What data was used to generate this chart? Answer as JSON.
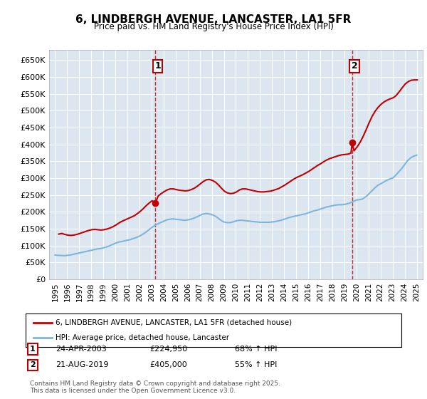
{
  "title": "6, LINDBERGH AVENUE, LANCASTER, LA1 5FR",
  "subtitle": "Price paid vs. HM Land Registry's House Price Index (HPI)",
  "ylabel": "",
  "background_color": "#ffffff",
  "plot_background": "#dce6f1",
  "grid_color": "#ffffff",
  "hpi_color": "#7eb6d9",
  "property_color": "#c00000",
  "sale1_date_x": 2003.31,
  "sale1_price": 224950,
  "sale1_label": "1",
  "sale2_date_x": 2019.64,
  "sale2_price": 405000,
  "sale2_label": "2",
  "ylim": [
    0,
    680000
  ],
  "xlim": [
    1994.5,
    2025.5
  ],
  "yticks": [
    0,
    50000,
    100000,
    150000,
    200000,
    250000,
    300000,
    350000,
    400000,
    450000,
    500000,
    550000,
    600000,
    650000
  ],
  "ytick_labels": [
    "£0",
    "£50K",
    "£100K",
    "£150K",
    "£200K",
    "£250K",
    "£300K",
    "£350K",
    "£400K",
    "£450K",
    "£500K",
    "£550K",
    "£600K",
    "£650K"
  ],
  "xticks": [
    1995,
    1996,
    1997,
    1998,
    1999,
    2000,
    2001,
    2002,
    2003,
    2004,
    2005,
    2006,
    2007,
    2008,
    2009,
    2010,
    2011,
    2012,
    2013,
    2014,
    2015,
    2016,
    2017,
    2018,
    2019,
    2020,
    2021,
    2022,
    2023,
    2024,
    2025
  ],
  "legend_property": "6, LINDBERGH AVENUE, LANCASTER, LA1 5FR (detached house)",
  "legend_hpi": "HPI: Average price, detached house, Lancaster",
  "annotation1": "1    24-APR-2003    £224,950    68% ↑ HPI",
  "annotation2": "2    21-AUG-2019    £405,000    55% ↑ HPI",
  "footer": "Contains HM Land Registry data © Crown copyright and database right 2025.\nThis data is licensed under the Open Government Licence v3.0.",
  "hpi_data_x": [
    1995.0,
    1995.25,
    1995.5,
    1995.75,
    1996.0,
    1996.25,
    1996.5,
    1996.75,
    1997.0,
    1997.25,
    1997.5,
    1997.75,
    1998.0,
    1998.25,
    1998.5,
    1998.75,
    1999.0,
    1999.25,
    1999.5,
    1999.75,
    2000.0,
    2000.25,
    2000.5,
    2000.75,
    2001.0,
    2001.25,
    2001.5,
    2001.75,
    2002.0,
    2002.25,
    2002.5,
    2002.75,
    2003.0,
    2003.25,
    2003.5,
    2003.75,
    2004.0,
    2004.25,
    2004.5,
    2004.75,
    2005.0,
    2005.25,
    2005.5,
    2005.75,
    2006.0,
    2006.25,
    2006.5,
    2006.75,
    2007.0,
    2007.25,
    2007.5,
    2007.75,
    2008.0,
    2008.25,
    2008.5,
    2008.75,
    2009.0,
    2009.25,
    2009.5,
    2009.75,
    2010.0,
    2010.25,
    2010.5,
    2010.75,
    2011.0,
    2011.25,
    2011.5,
    2011.75,
    2012.0,
    2012.25,
    2012.5,
    2012.75,
    2013.0,
    2013.25,
    2013.5,
    2013.75,
    2014.0,
    2014.25,
    2014.5,
    2014.75,
    2015.0,
    2015.25,
    2015.5,
    2015.75,
    2016.0,
    2016.25,
    2016.5,
    2016.75,
    2017.0,
    2017.25,
    2017.5,
    2017.75,
    2018.0,
    2018.25,
    2018.5,
    2018.75,
    2019.0,
    2019.25,
    2019.5,
    2019.75,
    2020.0,
    2020.25,
    2020.5,
    2020.75,
    2021.0,
    2021.25,
    2021.5,
    2021.75,
    2022.0,
    2022.25,
    2022.5,
    2022.75,
    2023.0,
    2023.25,
    2023.5,
    2023.75,
    2024.0,
    2024.25,
    2024.5,
    2024.75,
    2025.0
  ],
  "hpi_data_y": [
    72000,
    71000,
    70500,
    70000,
    71000,
    72000,
    74000,
    76000,
    78000,
    80000,
    82000,
    84000,
    86000,
    88000,
    90000,
    91000,
    93000,
    96000,
    99000,
    103000,
    107000,
    110000,
    112000,
    114000,
    116000,
    118000,
    121000,
    124000,
    128000,
    133000,
    139000,
    146000,
    153000,
    159000,
    164000,
    168000,
    172000,
    176000,
    178000,
    179000,
    178000,
    177000,
    176000,
    175000,
    176000,
    178000,
    181000,
    185000,
    189000,
    193000,
    195000,
    194000,
    192000,
    188000,
    182000,
    175000,
    170000,
    168000,
    168000,
    170000,
    173000,
    175000,
    175000,
    174000,
    173000,
    172000,
    171000,
    170000,
    169000,
    169000,
    169000,
    169000,
    170000,
    171000,
    173000,
    175000,
    178000,
    181000,
    184000,
    186000,
    188000,
    190000,
    192000,
    194000,
    197000,
    200000,
    203000,
    205000,
    208000,
    211000,
    214000,
    216000,
    218000,
    220000,
    221000,
    221000,
    222000,
    224000,
    227000,
    231000,
    235000,
    236000,
    238000,
    244000,
    252000,
    261000,
    270000,
    278000,
    283000,
    288000,
    293000,
    297000,
    300000,
    308000,
    318000,
    328000,
    340000,
    352000,
    360000,
    365000,
    368000
  ],
  "property_data_x": [
    1995.3,
    1995.55,
    1995.8,
    1996.05,
    1996.3,
    1996.55,
    1996.8,
    1997.05,
    1997.3,
    1997.55,
    1997.8,
    1998.05,
    1998.3,
    1998.55,
    1998.8,
    1999.05,
    1999.3,
    1999.55,
    1999.8,
    2000.05,
    2000.3,
    2000.55,
    2000.8,
    2001.05,
    2001.3,
    2001.55,
    2001.8,
    2002.05,
    2002.3,
    2002.55,
    2002.8,
    2003.05,
    2003.31,
    2003.55,
    2003.8,
    2004.05,
    2004.3,
    2004.55,
    2004.8,
    2005.05,
    2005.3,
    2005.55,
    2005.8,
    2006.05,
    2006.3,
    2006.55,
    2006.8,
    2007.05,
    2007.3,
    2007.55,
    2007.8,
    2008.05,
    2008.3,
    2008.55,
    2008.8,
    2009.05,
    2009.3,
    2009.55,
    2009.8,
    2010.05,
    2010.3,
    2010.55,
    2010.8,
    2011.05,
    2011.3,
    2011.55,
    2011.8,
    2012.05,
    2012.3,
    2012.55,
    2012.8,
    2013.05,
    2013.3,
    2013.55,
    2013.8,
    2014.05,
    2014.3,
    2014.55,
    2014.8,
    2015.05,
    2015.3,
    2015.55,
    2015.8,
    2016.05,
    2016.3,
    2016.55,
    2016.8,
    2017.05,
    2017.3,
    2017.55,
    2017.8,
    2018.05,
    2018.3,
    2018.55,
    2018.8,
    2019.05,
    2019.3,
    2019.55,
    2019.64,
    2019.8,
    2020.05,
    2020.3,
    2020.55,
    2020.8,
    2021.05,
    2021.3,
    2021.55,
    2021.8,
    2022.05,
    2022.3,
    2022.55,
    2022.8,
    2023.05,
    2023.3,
    2023.55,
    2023.8,
    2024.05,
    2024.3,
    2024.55,
    2024.8,
    2025.05
  ],
  "property_data_y": [
    134000,
    136000,
    133000,
    131000,
    130000,
    131000,
    133000,
    136000,
    139000,
    142000,
    145000,
    147000,
    148000,
    147000,
    146000,
    147000,
    149000,
    152000,
    156000,
    161000,
    167000,
    172000,
    176000,
    180000,
    184000,
    188000,
    194000,
    201000,
    209000,
    218000,
    226000,
    233000,
    224950,
    247000,
    254000,
    260000,
    265000,
    268000,
    268000,
    266000,
    264000,
    263000,
    262000,
    263000,
    266000,
    270000,
    276000,
    283000,
    290000,
    295000,
    296000,
    293000,
    288000,
    280000,
    270000,
    261000,
    256000,
    254000,
    255000,
    259000,
    265000,
    268000,
    268000,
    266000,
    264000,
    262000,
    260000,
    259000,
    259000,
    260000,
    261000,
    263000,
    266000,
    269000,
    274000,
    279000,
    285000,
    291000,
    297000,
    302000,
    306000,
    310000,
    315000,
    320000,
    326000,
    332000,
    338000,
    343000,
    349000,
    354000,
    358000,
    361000,
    364000,
    367000,
    369000,
    370000,
    371000,
    374000,
    405000,
    381000,
    392000,
    406000,
    423000,
    443000,
    464000,
    483000,
    498000,
    510000,
    519000,
    526000,
    531000,
    535000,
    538000,
    545000,
    556000,
    568000,
    579000,
    586000,
    590000,
    591000,
    591000
  ]
}
